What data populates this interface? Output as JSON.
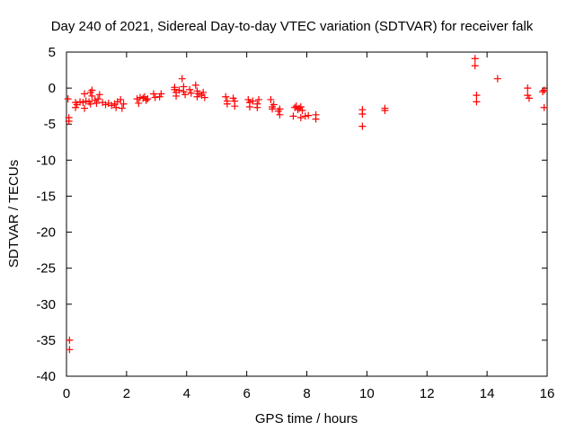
{
  "chart_data": {
    "type": "scatter",
    "title": "Day 240 of 2021, Sidereal Day-to-day VTEC variation (SDTVAR) for receiver falk",
    "xlabel": "GPS time / hours",
    "ylabel": "SDTVAR / TECUs",
    "xlim": [
      0,
      16
    ],
    "ylim": [
      -40,
      5
    ],
    "xticks": [
      0,
      2,
      4,
      6,
      8,
      10,
      12,
      14,
      16
    ],
    "yticks": [
      5,
      0,
      -5,
      -10,
      -15,
      -20,
      -25,
      -30,
      -35,
      -40
    ],
    "grid": false,
    "legend": "none",
    "marker": "+",
    "color": "#ff0000",
    "series": [
      {
        "name": "SDTVAR",
        "points": [
          [
            0.05,
            -1.5
          ],
          [
            0.08,
            -4.1
          ],
          [
            0.08,
            -4.6
          ],
          [
            0.1,
            -35.0
          ],
          [
            0.1,
            -36.3
          ],
          [
            0.3,
            -2.0
          ],
          [
            0.3,
            -2.7
          ],
          [
            0.35,
            -2.3
          ],
          [
            0.45,
            -1.9
          ],
          [
            0.55,
            -2.0
          ],
          [
            0.6,
            -0.8
          ],
          [
            0.6,
            -2.8
          ],
          [
            0.65,
            -1.8
          ],
          [
            0.75,
            -1.9
          ],
          [
            0.8,
            -0.6
          ],
          [
            0.8,
            -2.2
          ],
          [
            0.85,
            -1.1
          ],
          [
            0.85,
            -0.3
          ],
          [
            0.95,
            -1.7
          ],
          [
            1.0,
            -2.1
          ],
          [
            1.05,
            -1.5
          ],
          [
            1.1,
            -0.9
          ],
          [
            1.2,
            -2.0
          ],
          [
            1.3,
            -2.3
          ],
          [
            1.4,
            -2.1
          ],
          [
            1.5,
            -2.4
          ],
          [
            1.6,
            -2.2
          ],
          [
            1.65,
            -2.7
          ],
          [
            1.7,
            -1.9
          ],
          [
            1.8,
            -1.6
          ],
          [
            1.85,
            -2.8
          ],
          [
            1.9,
            -2.2
          ],
          [
            2.35,
            -1.5
          ],
          [
            2.4,
            -2.1
          ],
          [
            2.45,
            -1.3
          ],
          [
            2.55,
            -1.4
          ],
          [
            2.6,
            -1.2
          ],
          [
            2.65,
            -1.7
          ],
          [
            2.7,
            -1.5
          ],
          [
            2.9,
            -0.8
          ],
          [
            2.95,
            -1.3
          ],
          [
            3.1,
            -1.2
          ],
          [
            3.15,
            -0.8
          ],
          [
            3.6,
            -0.2
          ],
          [
            3.6,
            0.1
          ],
          [
            3.65,
            -0.6
          ],
          [
            3.65,
            -1.1
          ],
          [
            3.75,
            -0.3
          ],
          [
            3.85,
            1.3
          ],
          [
            3.9,
            0.2
          ],
          [
            3.9,
            -0.5
          ],
          [
            3.95,
            -0.9
          ],
          [
            4.1,
            -0.2
          ],
          [
            4.15,
            -0.7
          ],
          [
            4.3,
            0.4
          ],
          [
            4.35,
            -0.4
          ],
          [
            4.35,
            -1.2
          ],
          [
            4.4,
            -0.8
          ],
          [
            4.5,
            -1.0
          ],
          [
            4.55,
            -0.6
          ],
          [
            4.6,
            -1.3
          ],
          [
            5.3,
            -1.2
          ],
          [
            5.35,
            -1.8
          ],
          [
            5.35,
            -2.2
          ],
          [
            5.55,
            -1.4
          ],
          [
            5.6,
            -1.8
          ],
          [
            5.6,
            -2.5
          ],
          [
            6.05,
            -1.6
          ],
          [
            6.1,
            -2.0
          ],
          [
            6.1,
            -2.6
          ],
          [
            6.2,
            -1.8
          ],
          [
            6.35,
            -2.2
          ],
          [
            6.35,
            -2.7
          ],
          [
            6.4,
            -1.6
          ],
          [
            6.8,
            -1.6
          ],
          [
            6.85,
            -2.6
          ],
          [
            6.85,
            -2.9
          ],
          [
            6.9,
            -2.3
          ],
          [
            7.05,
            -3.2
          ],
          [
            7.1,
            -3.7
          ],
          [
            7.1,
            -2.9
          ],
          [
            7.55,
            -3.9
          ],
          [
            7.6,
            -2.7
          ],
          [
            7.65,
            -2.5
          ],
          [
            7.7,
            -3.0
          ],
          [
            7.75,
            -2.8
          ],
          [
            7.8,
            -2.6
          ],
          [
            7.8,
            -4.1
          ],
          [
            7.85,
            -3.1
          ],
          [
            7.95,
            -3.9
          ],
          [
            8.05,
            -3.8
          ],
          [
            8.3,
            -3.7
          ],
          [
            8.3,
            -4.3
          ],
          [
            9.85,
            -3.0
          ],
          [
            9.85,
            -3.6
          ],
          [
            9.85,
            -5.3
          ],
          [
            10.6,
            -2.8
          ],
          [
            10.6,
            -3.1
          ],
          [
            13.6,
            4.1
          ],
          [
            13.6,
            3.1
          ],
          [
            13.65,
            -1.0
          ],
          [
            13.65,
            -1.9
          ],
          [
            14.35,
            1.3
          ],
          [
            15.35,
            0.0
          ],
          [
            15.35,
            -1.0
          ],
          [
            15.4,
            -1.4
          ],
          [
            15.85,
            -0.5
          ],
          [
            15.9,
            -0.3
          ],
          [
            15.9,
            -2.7
          ]
        ]
      }
    ]
  }
}
